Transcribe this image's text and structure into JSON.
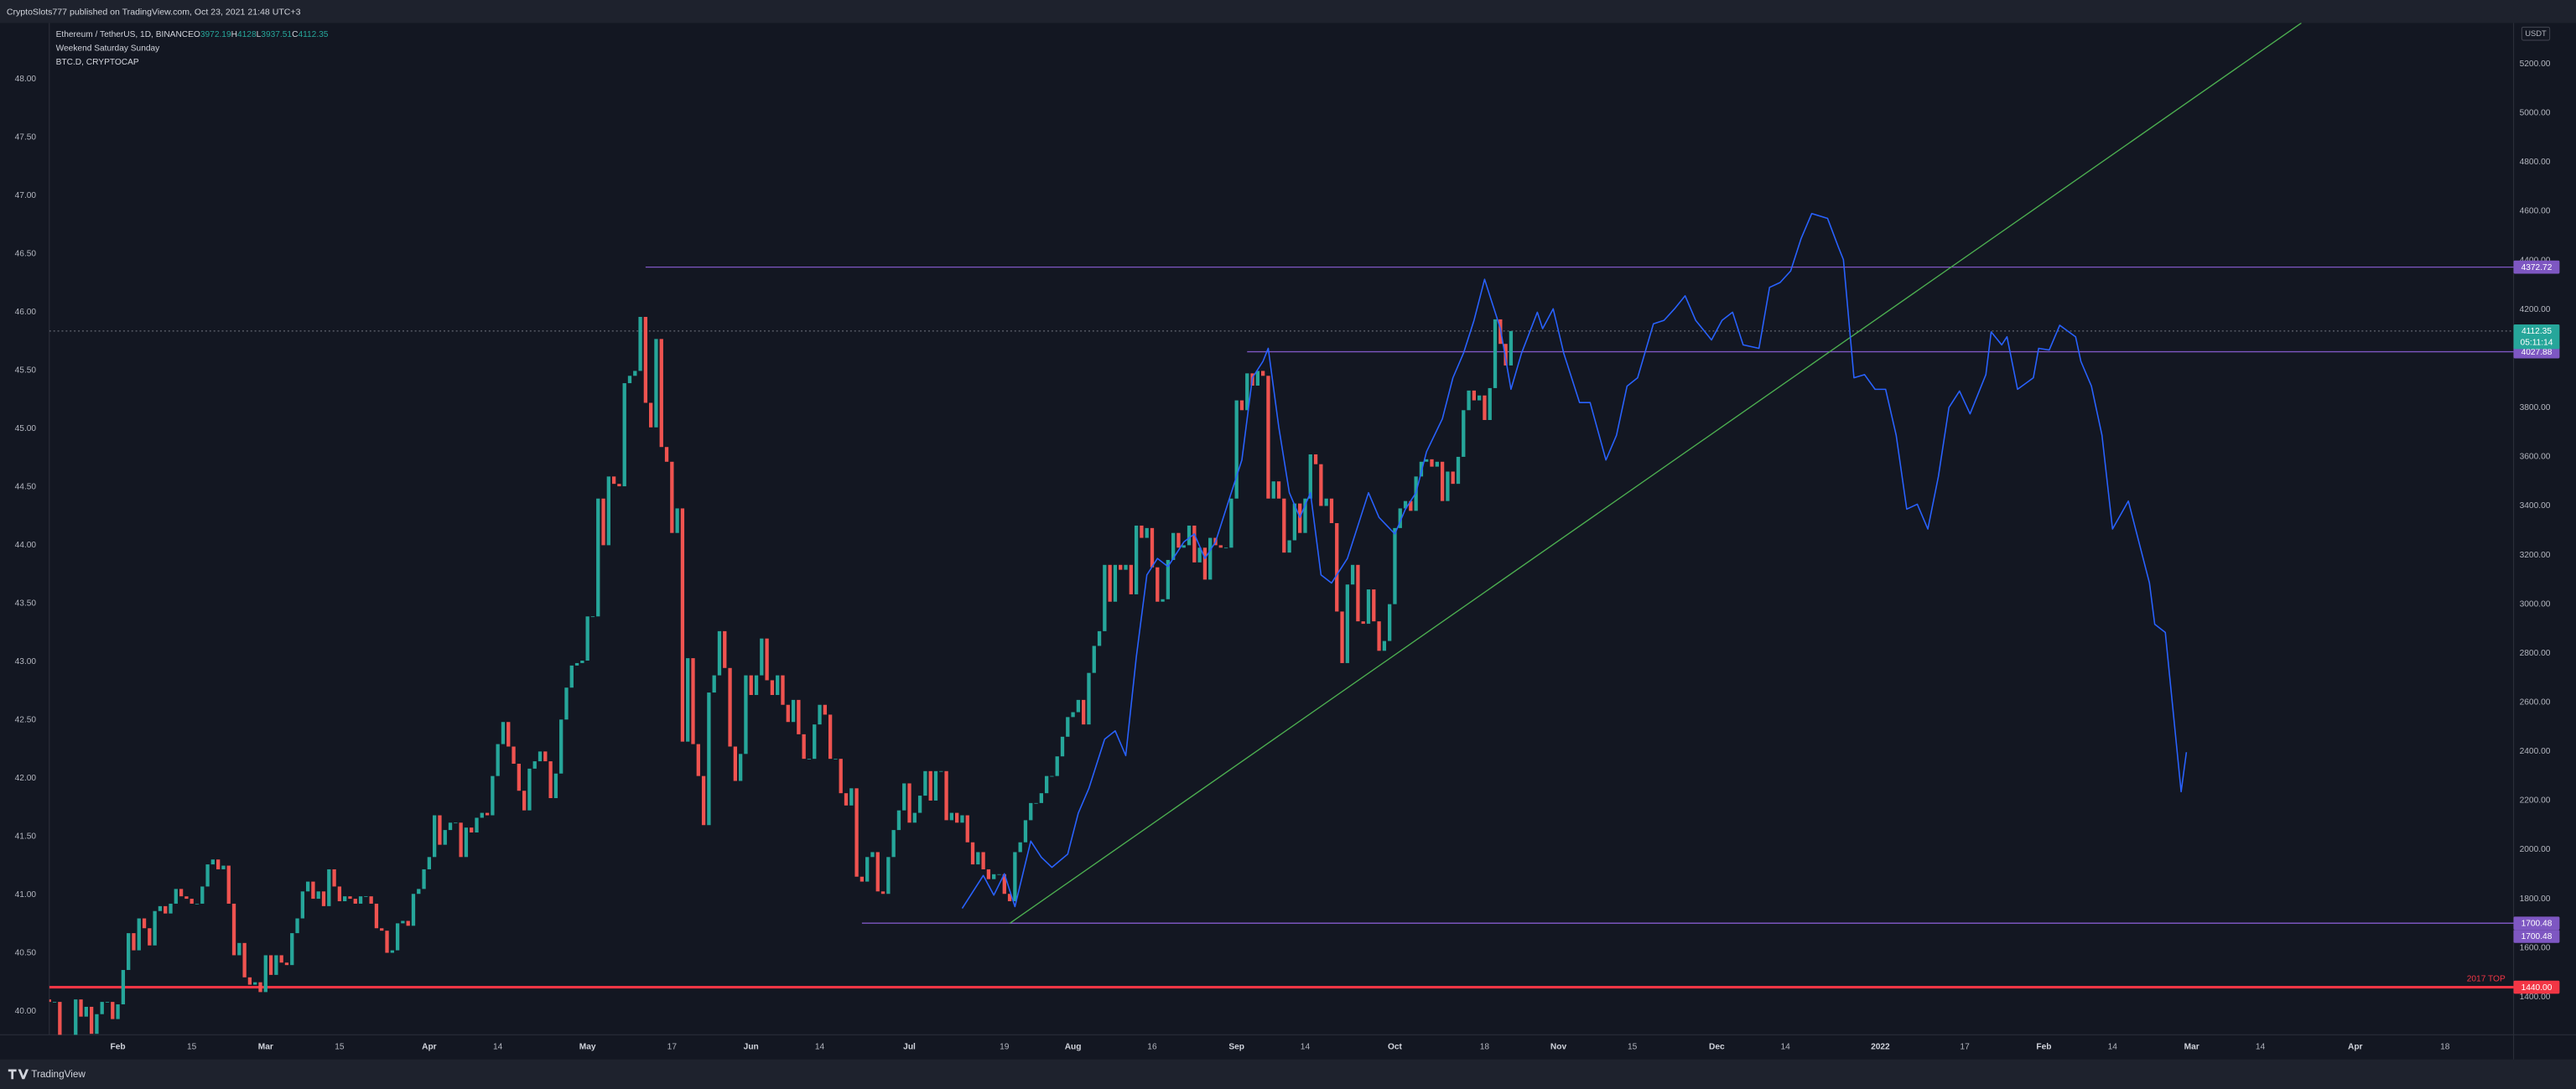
{
  "header": {
    "text": "CryptoSlots777 published on TradingView.com, Oct 23, 2021 21:48 UTC+3"
  },
  "chart_data": {
    "type": "candlestick",
    "legend": {
      "symbol": "Ethereum / TetherUS, 1D, BINANCE",
      "ohlc": [
        {
          "key": "O",
          "value": 3972.19
        },
        {
          "key": "H",
          "value": 4128.0
        },
        {
          "key": "L",
          "value": 3937.51
        },
        {
          "key": "C",
          "value": 4112.35
        }
      ],
      "indicators": [
        "Weekend Saturday Sunday",
        "BTC.D, CRYPTOCAP"
      ]
    },
    "currency": "USDT",
    "start": "2021-01-19",
    "open": [
      1390,
      1380,
      1380,
      1120,
      1230,
      1230,
      1390,
      1320,
      1360,
      1250,
      1330,
      1380,
      1380,
      1310,
      1370,
      1510,
      1660,
      1590,
      1720,
      1680,
      1610,
      1750,
      1770,
      1740,
      1780,
      1840,
      1810,
      1800,
      1780,
      1780,
      1850,
      1940,
      1960,
      1920,
      1935,
      1780,
      1570,
      1620,
      1480,
      1450,
      1460,
      1420,
      1570,
      1490,
      1570,
      1540,
      1530,
      1660,
      1720,
      1830,
      1870,
      1800,
      1830,
      1770,
      1920,
      1850,
      1790,
      1810,
      1800,
      1780,
      1810,
      1810,
      1780,
      1680,
      1670,
      1580,
      1590,
      1700,
      1710,
      1690,
      1820,
      1840,
      1920,
      1970,
      2140,
      2020,
      2080,
      2110,
      2110,
      1970,
      2090,
      2070,
      2130,
      2150,
      2140,
      2300,
      2430,
      2520,
      2420,
      2350,
      2240,
      2160,
      2330,
      2360,
      2400,
      2360,
      2210,
      2310,
      2530,
      2660,
      2750,
      2760,
      2770,
      2950,
      2950,
      3430,
      3240,
      3520,
      3490,
      3480,
      3900,
      3930,
      3950,
      4170,
      3820,
      3720,
      4080,
      3640,
      3580,
      3290,
      3390,
      2440,
      2780,
      2430,
      2300,
      2100,
      2640,
      2710,
      2890,
      2740,
      2420,
      2280,
      2390,
      2710,
      2630,
      2710,
      2860,
      2690,
      2630,
      2710,
      2590,
      2520,
      2610,
      2470,
      2370,
      2370,
      2510,
      2590,
      2550,
      2370,
      2370,
      2230,
      2180,
      2250,
      1890,
      1870,
      1970,
      1990,
      1830,
      1820,
      1970,
      2080,
      2160,
      2270,
      2110,
      2150,
      2220,
      2320,
      2200,
      2320,
      2320,
      2120,
      2150,
      2110,
      2140,
      2030,
      1940,
      1990,
      1920,
      1880,
      1900,
      1900,
      1820,
      1790,
      1990,
      2030,
      2120,
      2190,
      2190,
      2230,
      2300,
      2300,
      2380,
      2460,
      2540,
      2560,
      2610,
      2510,
      2720,
      2830,
      2890,
      3160,
      3010,
      3160,
      3140,
      3160,
      3040,
      3320,
      3270,
      3310,
      3150,
      3010,
      3020,
      3180,
      3290,
      3230,
      3240,
      3320,
      3170,
      3230,
      3100,
      3270,
      3240,
      3230,
      3230,
      3430,
      3830,
      3790,
      3940,
      3890,
      3950,
      3930,
      3430,
      3500,
      3430,
      3210,
      3260,
      3410,
      3290,
      3430,
      3610,
      3570,
      3400,
      3430,
      3330,
      2970,
      2760,
      3080,
      3160,
      2930,
      2920,
      3060,
      2930,
      2810,
      2850,
      3000,
      3310,
      3390,
      3420,
      3380,
      3520,
      3580,
      3590,
      3560,
      3580,
      3420,
      3540,
      3490,
      3600,
      3790,
      3870,
      3830,
      3850,
      3750,
      3880,
      4160,
      4060,
      3972.19
    ],
    "close": [
      1380,
      1380,
      1120,
      1230,
      1230,
      1390,
      1320,
      1360,
      1250,
      1330,
      1380,
      1380,
      1310,
      1370,
      1510,
      1660,
      1590,
      1720,
      1680,
      1610,
      1750,
      1770,
      1740,
      1780,
      1840,
      1810,
      1800,
      1780,
      1780,
      1850,
      1940,
      1960,
      1920,
      1935,
      1780,
      1570,
      1620,
      1480,
      1450,
      1460,
      1420,
      1570,
      1490,
      1570,
      1540,
      1530,
      1660,
      1720,
      1830,
      1870,
      1800,
      1830,
      1770,
      1920,
      1850,
      1790,
      1810,
      1800,
      1780,
      1810,
      1810,
      1780,
      1680,
      1670,
      1580,
      1590,
      1700,
      1710,
      1690,
      1820,
      1840,
      1920,
      1970,
      2140,
      2020,
      2080,
      2110,
      2110,
      1970,
      2090,
      2070,
      2130,
      2150,
      2140,
      2300,
      2430,
      2520,
      2420,
      2350,
      2240,
      2160,
      2330,
      2360,
      2400,
      2360,
      2210,
      2310,
      2530,
      2660,
      2750,
      2760,
      2770,
      2950,
      2950,
      3430,
      3240,
      3520,
      3490,
      3480,
      3900,
      3930,
      3950,
      4170,
      3820,
      3720,
      4080,
      3640,
      3580,
      3290,
      3390,
      2440,
      2780,
      2430,
      2300,
      2100,
      2640,
      2710,
      2890,
      2740,
      2420,
      2280,
      2390,
      2710,
      2630,
      2710,
      2860,
      2690,
      2630,
      2710,
      2590,
      2520,
      2610,
      2470,
      2370,
      2370,
      2510,
      2590,
      2550,
      2370,
      2370,
      2230,
      2180,
      2250,
      1890,
      1870,
      1970,
      1990,
      1830,
      1820,
      1970,
      2080,
      2160,
      2270,
      2110,
      2150,
      2220,
      2320,
      2200,
      2320,
      2320,
      2120,
      2150,
      2110,
      2140,
      2030,
      1940,
      1990,
      1920,
      1880,
      1900,
      1900,
      1820,
      1790,
      1990,
      2030,
      2120,
      2190,
      2190,
      2230,
      2300,
      2300,
      2380,
      2460,
      2540,
      2560,
      2610,
      2510,
      2720,
      2830,
      2890,
      3160,
      3010,
      3160,
      3140,
      3160,
      3040,
      3320,
      3270,
      3310,
      3150,
      3010,
      3020,
      3180,
      3290,
      3230,
      3240,
      3320,
      3170,
      3230,
      3100,
      3270,
      3240,
      3230,
      3230,
      3430,
      3830,
      3790,
      3940,
      3890,
      3950,
      3930,
      3430,
      3500,
      3430,
      3210,
      3260,
      3410,
      3290,
      3430,
      3610,
      3570,
      3400,
      3430,
      3330,
      2970,
      2760,
      3080,
      3160,
      2930,
      2920,
      3060,
      2930,
      2810,
      2850,
      3000,
      3310,
      3390,
      3420,
      3380,
      3520,
      3580,
      3590,
      3560,
      3580,
      3420,
      3540,
      3490,
      3600,
      3790,
      3870,
      3830,
      3850,
      3750,
      3880,
      4160,
      4060,
      3972.19,
      4112.35
    ],
    "up_color": "#26a69a",
    "down_color": "#ef5350",
    "xlim": [
      "2021-01-19",
      "2022-05-01"
    ],
    "xticks": [
      {
        "value": "2021-02-01",
        "label": "Feb"
      },
      {
        "value": "2021-02-15",
        "label": "15"
      },
      {
        "value": "2021-03-01",
        "label": "Mar"
      },
      {
        "value": "2021-03-15",
        "label": "15"
      },
      {
        "value": "2021-04-01",
        "label": "Apr"
      },
      {
        "value": "2021-04-14",
        "label": "14"
      },
      {
        "value": "2021-05-01",
        "label": "May"
      },
      {
        "value": "2021-05-17",
        "label": "17"
      },
      {
        "value": "2021-06-01",
        "label": "Jun"
      },
      {
        "value": "2021-06-14",
        "label": "14"
      },
      {
        "value": "2021-07-01",
        "label": "Jul"
      },
      {
        "value": "2021-07-19",
        "label": "19"
      },
      {
        "value": "2021-08-01",
        "label": "Aug"
      },
      {
        "value": "2021-08-16",
        "label": "16"
      },
      {
        "value": "2021-09-01",
        "label": "Sep"
      },
      {
        "value": "2021-09-14",
        "label": "14"
      },
      {
        "value": "2021-10-01",
        "label": "Oct"
      },
      {
        "value": "2021-10-18",
        "label": "18"
      },
      {
        "value": "2021-11-01",
        "label": "Nov"
      },
      {
        "value": "2021-11-15",
        "label": "15"
      },
      {
        "value": "2021-12-01",
        "label": "Dec"
      },
      {
        "value": "2021-12-14",
        "label": "14"
      },
      {
        "value": "2022-01-01",
        "label": "2022"
      },
      {
        "value": "2022-01-17",
        "label": "17"
      },
      {
        "value": "2022-02-01",
        "label": "Feb"
      },
      {
        "value": "2022-02-14",
        "label": "14"
      },
      {
        "value": "2022-03-01",
        "label": "Mar"
      },
      {
        "value": "2022-03-14",
        "label": "14"
      },
      {
        "value": "2022-04-01",
        "label": "Apr"
      },
      {
        "value": "2022-04-18",
        "label": "18"
      }
    ],
    "ylim": [
      1246,
      5367
    ],
    "yticks": [
      {
        "value": 5200,
        "label": "5200.00"
      },
      {
        "value": 5000,
        "label": "5000.00"
      },
      {
        "value": 4800,
        "label": "4800.00"
      },
      {
        "value": 4600,
        "label": "4600.00"
      },
      {
        "value": 4400,
        "label": "4400.00"
      },
      {
        "value": 4200,
        "label": "4200.00"
      },
      {
        "value": 3800,
        "label": "3800.00"
      },
      {
        "value": 3600,
        "label": "3600.00"
      },
      {
        "value": 3400,
        "label": "3400.00"
      },
      {
        "value": 3200,
        "label": "3200.00"
      },
      {
        "value": 3000,
        "label": "3000.00"
      },
      {
        "value": 2800,
        "label": "2800.00"
      },
      {
        "value": 2600,
        "label": "2600.00"
      },
      {
        "value": 2400,
        "label": "2400.00"
      },
      {
        "value": 2200,
        "label": "2200.00"
      },
      {
        "value": 2000,
        "label": "2000.00"
      },
      {
        "value": 1800,
        "label": "1800.00"
      },
      {
        "value": 1600,
        "label": "1600.00"
      },
      {
        "value": 1400,
        "label": "1400.00"
      }
    ],
    "y2lim": [
      39.8,
      48.48
    ],
    "y2ticks": [
      {
        "value": 48,
        "label": "48.00"
      },
      {
        "value": 47.5,
        "label": "47.50"
      },
      {
        "value": 47,
        "label": "47.00"
      },
      {
        "value": 46.5,
        "label": "46.50"
      },
      {
        "value": 46,
        "label": "46.00"
      },
      {
        "value": 45.5,
        "label": "45.50"
      },
      {
        "value": 45,
        "label": "45.00"
      },
      {
        "value": 44.5,
        "label": "44.50"
      },
      {
        "value": 44,
        "label": "44.00"
      },
      {
        "value": 43.5,
        "label": "43.50"
      },
      {
        "value": 43,
        "label": "43.00"
      },
      {
        "value": 42.5,
        "label": "42.50"
      },
      {
        "value": 42,
        "label": "42.00"
      },
      {
        "value": 41.5,
        "label": "41.50"
      },
      {
        "value": 41,
        "label": "41.00"
      },
      {
        "value": 40.5,
        "label": "40.50"
      },
      {
        "value": 40,
        "label": "40.00"
      }
    ],
    "projection": {
      "color": "#2962ff",
      "x": [
        "2021-07-11",
        "2021-07-15",
        "2021-07-17",
        "2021-07-19",
        "2021-07-21",
        "2021-07-24",
        "2021-07-26",
        "2021-07-28",
        "2021-07-31",
        "2021-08-02",
        "2021-08-04",
        "2021-08-07",
        "2021-08-09",
        "2021-08-11",
        "2021-08-13",
        "2021-08-15",
        "2021-08-17",
        "2021-08-19",
        "2021-08-22",
        "2021-08-24",
        "2021-08-26",
        "2021-08-28",
        "2021-08-31",
        "2021-09-02",
        "2021-09-04",
        "2021-09-06",
        "2021-09-07",
        "2021-09-09",
        "2021-09-11",
        "2021-09-13",
        "2021-09-15",
        "2021-09-17",
        "2021-09-19",
        "2021-09-22",
        "2021-09-24",
        "2021-09-26",
        "2021-09-28",
        "2021-10-01",
        "2021-10-03",
        "2021-10-05",
        "2021-10-07",
        "2021-10-10",
        "2021-10-12",
        "2021-10-14",
        "2021-10-16",
        "2021-10-18",
        "2021-10-21",
        "2021-10-23",
        "2021-10-25",
        "2021-10-28",
        "2021-10-29",
        "2021-10-31",
        "2021-11-02",
        "2021-11-05",
        "2021-11-07",
        "2021-11-10",
        "2021-11-12",
        "2021-11-14",
        "2021-11-16",
        "2021-11-19",
        "2021-11-21",
        "2021-11-23",
        "2021-11-25",
        "2021-11-27",
        "2021-11-30",
        "2021-12-02",
        "2021-12-04",
        "2021-12-06",
        "2021-12-09",
        "2021-12-11",
        "2021-12-13",
        "2021-12-15",
        "2021-12-17",
        "2021-12-19",
        "2021-12-22",
        "2021-12-24",
        "2021-12-25",
        "2021-12-27",
        "2021-12-29",
        "2021-12-31",
        "2022-01-02",
        "2022-01-04",
        "2022-01-06",
        "2022-01-08",
        "2022-01-10",
        "2022-01-12",
        "2022-01-14",
        "2022-01-16",
        "2022-01-18",
        "2022-01-21",
        "2022-01-22",
        "2022-01-24",
        "2022-01-25",
        "2022-01-27",
        "2022-01-30",
        "2022-01-31",
        "2022-02-02",
        "2022-02-04",
        "2022-02-07",
        "2022-02-08",
        "2022-02-10",
        "2022-02-12",
        "2022-02-14",
        "2022-02-17",
        "2022-02-19",
        "2022-02-21",
        "2022-02-22",
        "2022-02-24",
        "2022-02-27",
        "2022-02-28"
      ],
      "values": [
        1761,
        1895,
        1815,
        1902,
        1768,
        2035,
        1969,
        1928,
        1982,
        2149,
        2249,
        2450,
        2484,
        2383,
        2785,
        3119,
        3186,
        3153,
        3253,
        3286,
        3186,
        3253,
        3454,
        3587,
        3922,
        3989,
        4042,
        3721,
        3454,
        3353,
        3454,
        3119,
        3086,
        3186,
        3320,
        3454,
        3353,
        3286,
        3387,
        3454,
        3621,
        3755,
        3922,
        4022,
        4156,
        4323,
        4122,
        3875,
        4022,
        4189,
        4122,
        4203,
        4022,
        3821,
        3821,
        3587,
        3688,
        3888,
        3922,
        4142,
        4156,
        4203,
        4256,
        4156,
        4076,
        4156,
        4189,
        4056,
        4042,
        4290,
        4310,
        4357,
        4490,
        4591,
        4571,
        4457,
        4403,
        3922,
        3935,
        3875,
        3875,
        3688,
        3387,
        3407,
        3306,
        3520,
        3801,
        3868,
        3775,
        3935,
        4109,
        4056,
        4089,
        3875,
        3922,
        4042,
        4035,
        4136,
        4089,
        3989,
        3888,
        3688,
        3306,
        3420,
        3253,
        3086,
        2918,
        2885,
        2236,
        2397
      ]
    },
    "trendline": {
      "color": "#4caf50",
      "x": [
        "2021-07-20",
        "2021-12-22"
      ],
      "values": [
        1700,
        4022
      ],
      "extend": "right"
    },
    "levels": [
      {
        "value": 4372.72,
        "start": "2021-05-12",
        "color": "#7e57c2"
      },
      {
        "value": 4027.88,
        "start": "2021-09-03",
        "color": "#7e57c2"
      },
      {
        "value": 1700.48,
        "start": "2021-06-22",
        "color": "#7e57c2"
      },
      {
        "value": 1700.48,
        "start": "2021-07-20",
        "color": "#7e57c2"
      },
      {
        "value": 1440,
        "badge_label": "1440.00",
        "text": "2017 TOP",
        "start": "2021-01-19",
        "color": "#f23645"
      }
    ],
    "last_price": {
      "value": 4112.35,
      "countdown": "05:11:14",
      "color": "#26a69a"
    }
  },
  "footer": {
    "brand": "TradingView"
  }
}
